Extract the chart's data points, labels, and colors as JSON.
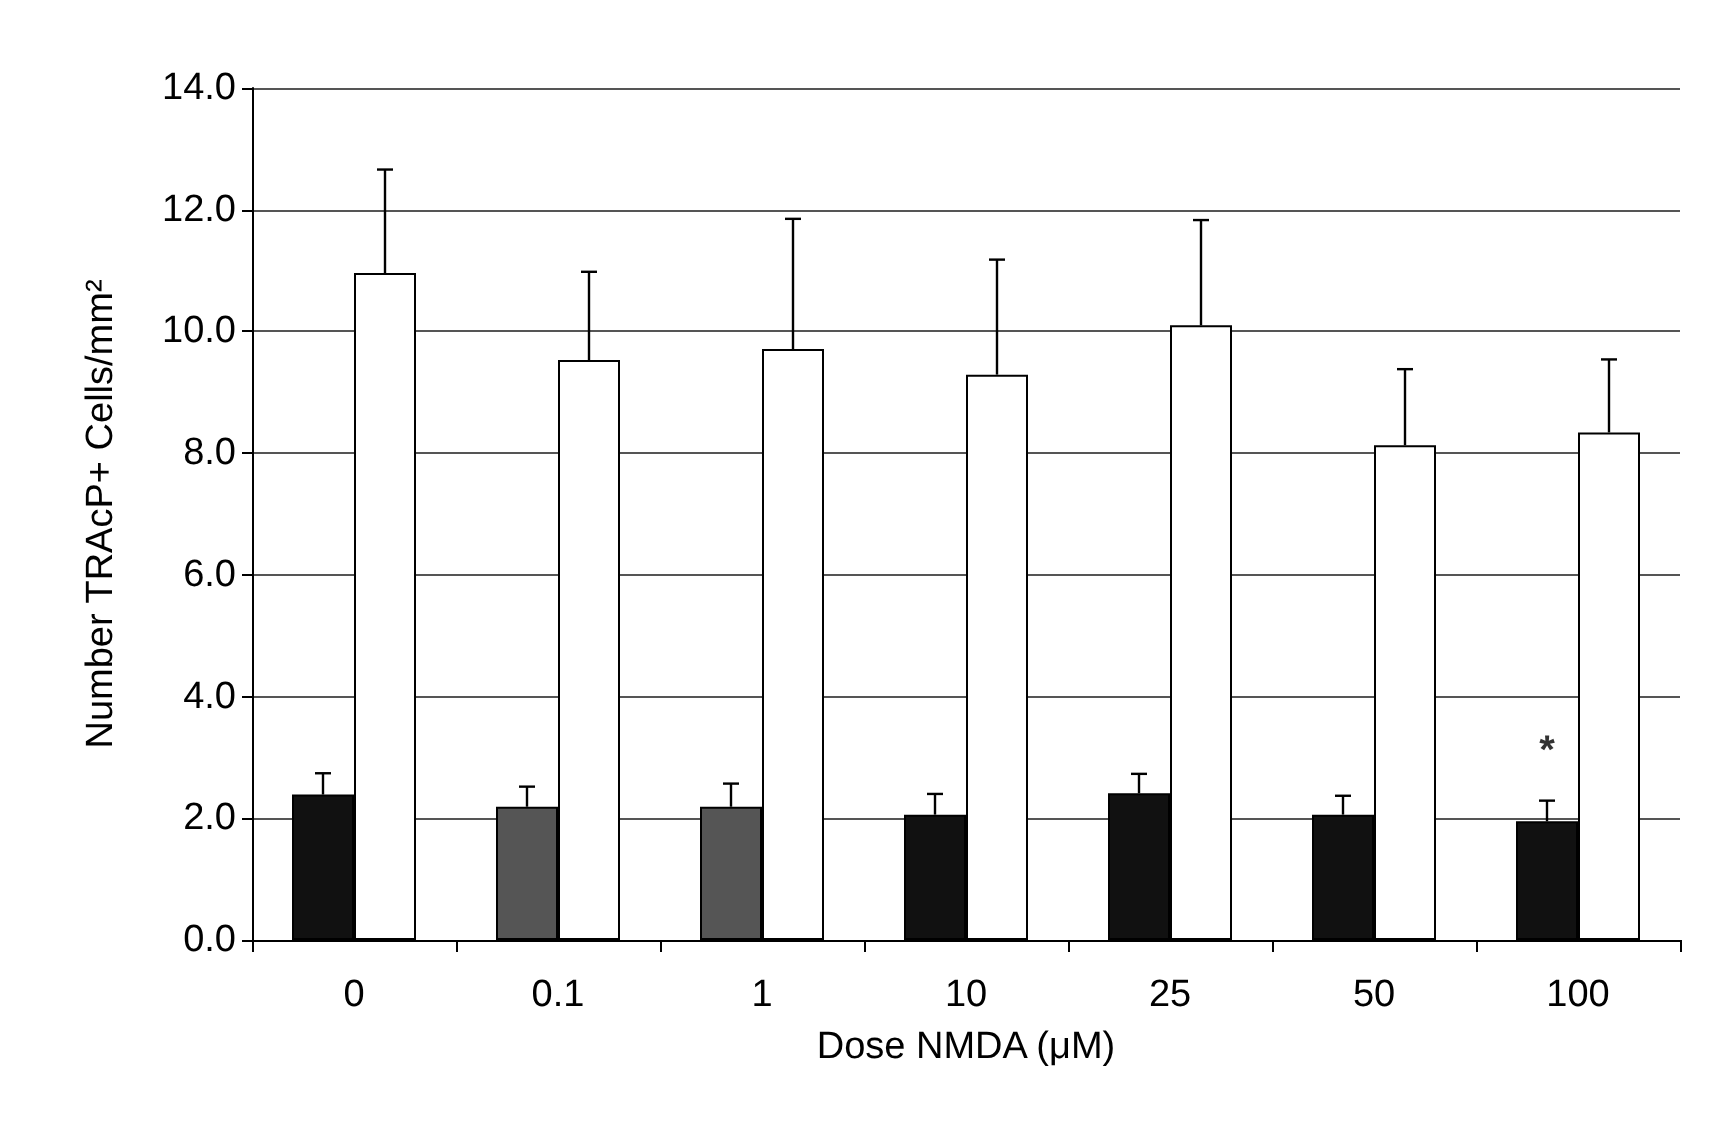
{
  "chart_data": {
    "type": "bar",
    "xlabel": "Dose NMDA (μM)",
    "ylabel": "Number TRAcP+ Cells/mm²",
    "categories": [
      "0",
      "0.1",
      "1",
      "10",
      "25",
      "50",
      "100"
    ],
    "series": [
      {
        "colors": [
          "#111111",
          "#555555",
          "#555555",
          "#111111",
          "#111111",
          "#111111",
          "#111111"
        ],
        "values": [
          2.39,
          2.19,
          2.19,
          2.06,
          2.41,
          2.06,
          1.95
        ],
        "errors": [
          [
            2.39,
            2.74
          ],
          [
            2.19,
            2.52
          ],
          [
            2.19,
            2.57
          ],
          [
            2.06,
            2.4
          ],
          [
            2.41,
            2.73
          ],
          [
            2.06,
            2.37
          ],
          [
            1.95,
            2.29
          ]
        ]
      },
      {
        "color": "#ffffff",
        "values": [
          10.96,
          9.53,
          9.71,
          9.29,
          10.1,
          8.13,
          8.34
        ],
        "errors": [
          [
            10.96,
            12.66
          ],
          [
            9.53,
            10.98
          ],
          [
            9.71,
            11.85
          ],
          [
            9.29,
            11.18
          ],
          [
            10.1,
            11.83
          ],
          [
            8.13,
            9.38
          ],
          [
            8.34,
            9.54
          ]
        ]
      }
    ],
    "ylim": [
      0,
      14
    ],
    "yticks": [
      {
        "value": 0,
        "label": "0.0"
      },
      {
        "value": 2,
        "label": "2.0"
      },
      {
        "value": 4,
        "label": "4.0"
      },
      {
        "value": 6,
        "label": "6.0"
      },
      {
        "value": 8,
        "label": "8.0"
      },
      {
        "value": 10,
        "label": "10.0"
      },
      {
        "value": 12,
        "label": "12.0"
      },
      {
        "value": 14,
        "label": "14.0"
      }
    ],
    "grid": "y",
    "annotations": [
      {
        "text": "*",
        "x": "100",
        "y": 3.1
      }
    ]
  }
}
